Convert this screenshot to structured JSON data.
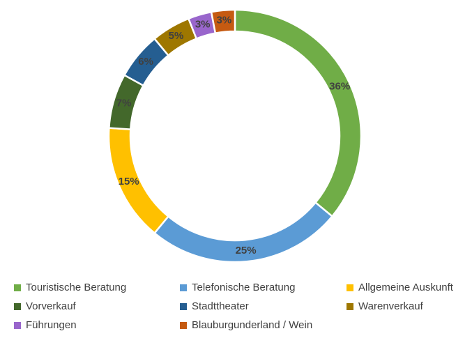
{
  "chart_data": {
    "type": "donut",
    "categories": [
      "Touristische Beratung",
      "Telefonische Beratung",
      "Allgemeine Auskunft",
      "Vorverkauf",
      "Stadttheater",
      "Warenverkauf",
      "Führungen",
      "Blauburgunderland / Wein"
    ],
    "values": [
      36,
      25,
      15,
      7,
      6,
      5,
      3,
      3
    ],
    "value_labels": [
      "36%",
      "25%",
      "15%",
      "7%",
      "6%",
      "5%",
      "3%",
      "3%"
    ],
    "colors": [
      "#70ad47",
      "#5b9bd5",
      "#ffc000",
      "#43682b",
      "#255e91",
      "#9e7700",
      "#9966cc",
      "#c55a11"
    ],
    "legend": "bottom"
  }
}
